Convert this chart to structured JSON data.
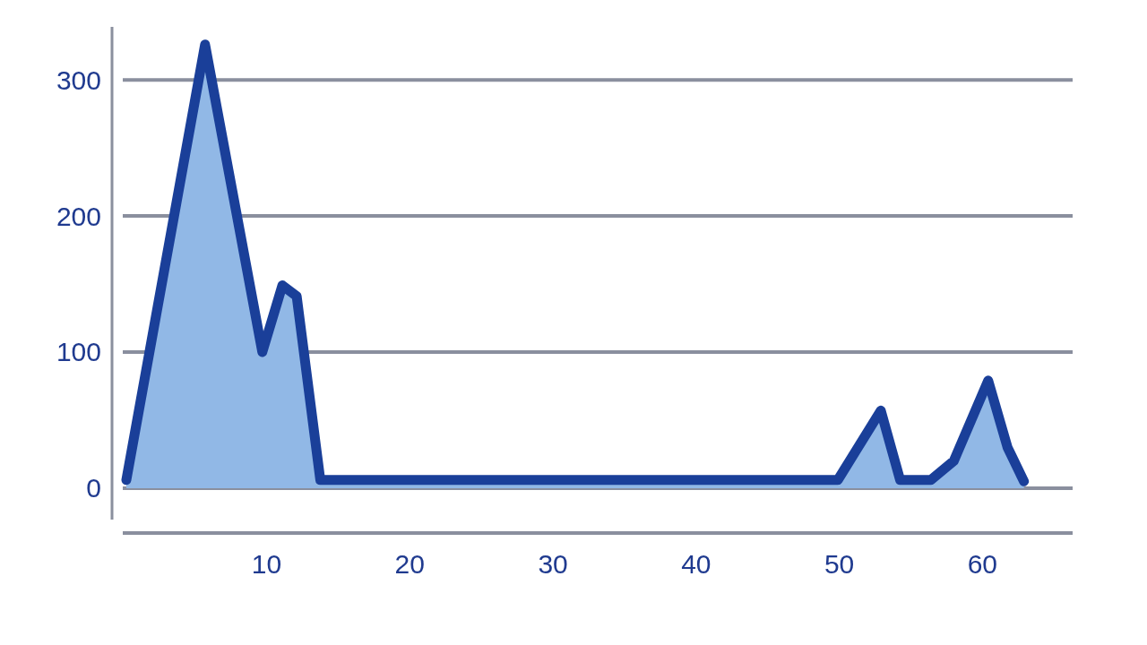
{
  "chart_data": {
    "type": "area",
    "x": [
      0.2,
      5.7,
      9.7,
      11.1,
      12.1,
      13.75,
      49.9,
      52.9,
      54.25,
      56.4,
      58,
      60.4,
      61.75,
      62.9
    ],
    "series": [
      {
        "color": "#1a3f99",
        "values": [
          6,
          326,
          100,
          149,
          141,
          6,
          6,
          57,
          6,
          6,
          20,
          79,
          30,
          5
        ]
      }
    ],
    "xlim": [
      -0.8,
      66.3
    ],
    "ylim": [
      -33,
      339
    ],
    "xticks": [
      10,
      20,
      30,
      40,
      50,
      60
    ],
    "yticks": [
      0,
      100,
      200,
      300
    ],
    "grid": "y"
  }
}
